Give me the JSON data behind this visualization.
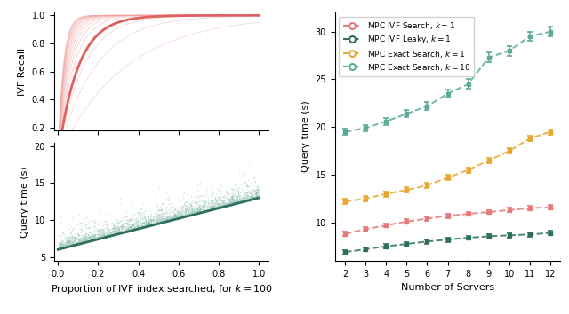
{
  "left_top": {
    "ylabel": "IVF Recall",
    "ylim": [
      0.18,
      1.02
    ],
    "yticks": [
      0.2,
      0.4,
      0.6,
      0.8,
      1.0
    ],
    "xlim": [
      -0.02,
      1.05
    ],
    "curve_color_main": "#e06060",
    "curve_color_light": "#f0a0a0",
    "num_light_curves": 15
  },
  "left_bot": {
    "ylabel": "Query time (s)",
    "xlabel": "Proportion of IVF index searched, for $k = 100$",
    "ylim": [
      4.5,
      20.5
    ],
    "yticks": [
      5,
      10,
      15,
      20
    ],
    "xlim": [
      -0.02,
      1.05
    ],
    "scatter_color": "#82b8a8",
    "line_color": "#2d6e5e"
  },
  "right": {
    "ylabel": "Query time (s)",
    "xlabel": "Number of Servers",
    "ylim": [
      6,
      32
    ],
    "yticks": [
      10,
      15,
      20,
      25,
      30
    ],
    "xticks": [
      2,
      3,
      4,
      5,
      6,
      7,
      8,
      9,
      10,
      11,
      12
    ],
    "series": [
      {
        "label": "MPC IVF Search, $k =1$",
        "color": "#e87878",
        "marker": "s",
        "values": [
          8.8,
          9.3,
          9.7,
          10.1,
          10.4,
          10.7,
          10.9,
          11.1,
          11.3,
          11.5,
          11.6
        ],
        "yerr": [
          0.22,
          0.22,
          0.22,
          0.22,
          0.22,
          0.22,
          0.22,
          0.22,
          0.22,
          0.22,
          0.22
        ]
      },
      {
        "label": "MPC IVF Leaky, $k =1$",
        "color": "#2d6e5e",
        "marker": "s",
        "values": [
          6.9,
          7.2,
          7.5,
          7.75,
          8.0,
          8.2,
          8.4,
          8.55,
          8.65,
          8.75,
          8.9
        ],
        "yerr": [
          0.22,
          0.22,
          0.22,
          0.22,
          0.22,
          0.22,
          0.22,
          0.22,
          0.22,
          0.22,
          0.22
        ]
      },
      {
        "label": "MPC Exact Search, $k =1$",
        "color": "#e8a830",
        "marker": "s",
        "values": [
          12.2,
          12.5,
          13.0,
          13.4,
          13.9,
          14.7,
          15.5,
          16.5,
          17.5,
          18.8,
          19.5
        ],
        "yerr": [
          0.28,
          0.28,
          0.28,
          0.28,
          0.28,
          0.28,
          0.28,
          0.28,
          0.28,
          0.28,
          0.28
        ]
      },
      {
        "label": "MPC Exact Search, $k =10$",
        "color": "#5daa99",
        "marker": "s",
        "values": [
          19.5,
          19.9,
          20.6,
          21.4,
          22.2,
          23.5,
          24.5,
          27.3,
          28.0,
          29.5,
          30.0
        ],
        "yerr": [
          0.35,
          0.35,
          0.35,
          0.35,
          0.4,
          0.45,
          0.5,
          0.5,
          0.5,
          0.5,
          0.5
        ]
      }
    ],
    "servers": [
      2,
      3,
      4,
      5,
      6,
      7,
      8,
      9,
      10,
      11,
      12
    ]
  }
}
